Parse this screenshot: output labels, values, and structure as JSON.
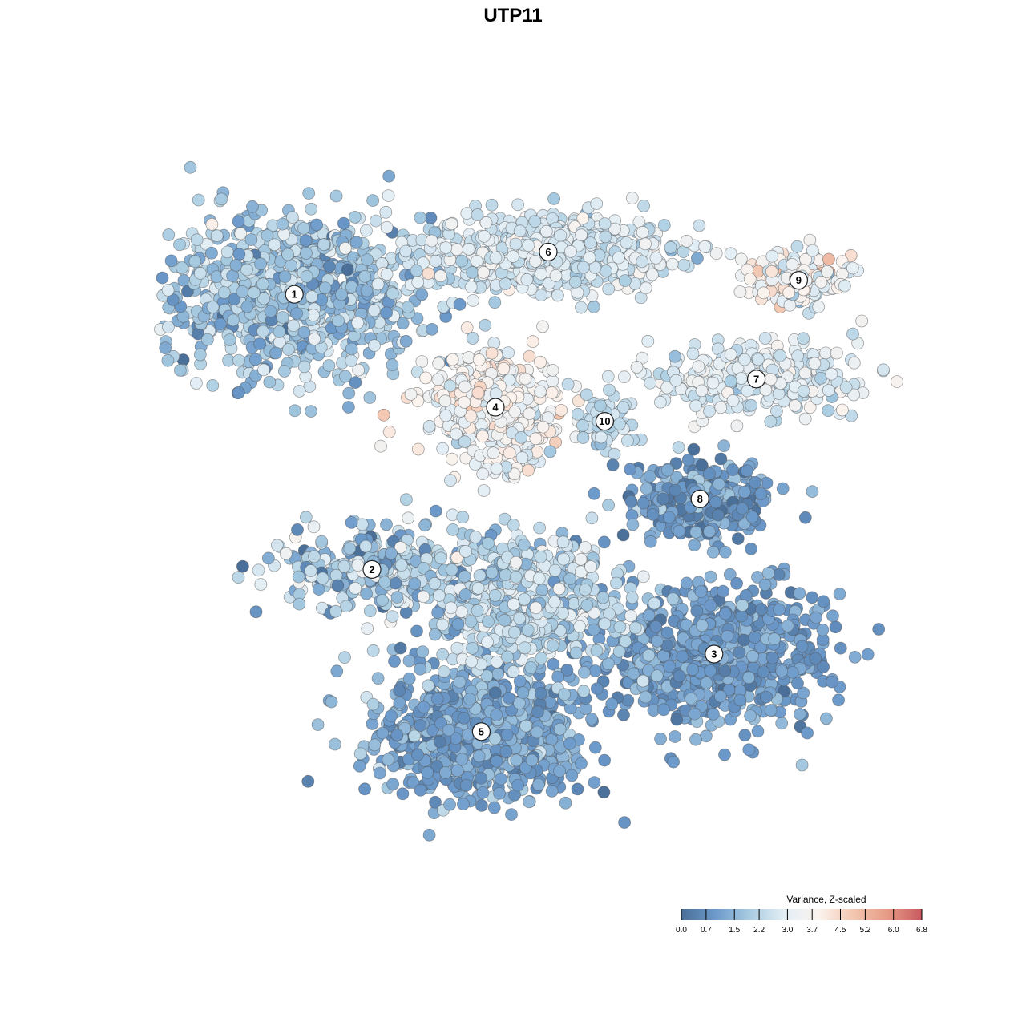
{
  "chart_data": {
    "type": "scatter",
    "title": "UTP11",
    "xlabel": "",
    "ylabel": "",
    "grid": false,
    "legend": {
      "title": "Variance, Z-scaled",
      "placement": "bottom-right",
      "range": [
        0.0,
        6.8
      ],
      "ticks": [
        "0.0",
        "0.7",
        "1.5",
        "2.2",
        "3.0",
        "3.7",
        "4.5",
        "5.2",
        "6.0",
        "6.8"
      ],
      "tick_values": [
        0.0,
        0.7,
        1.5,
        2.2,
        3.0,
        3.7,
        4.5,
        5.2,
        6.0,
        6.8
      ],
      "colormap": [
        "#4a6f98",
        "#6c9acb",
        "#a9cce1",
        "#e3eef5",
        "#fbf3ee",
        "#f3c7b1",
        "#e69b85",
        "#c85a60"
      ]
    },
    "clusters": [
      {
        "label": "1",
        "x": -0.62,
        "y": 0.62,
        "spread": [
          0.26,
          0.16
        ],
        "value": 1.9,
        "sd": 0.6,
        "count": 900
      },
      {
        "label": "6",
        "x": 0.1,
        "y": 0.74,
        "spread": [
          0.24,
          0.07
        ],
        "value": 2.7,
        "sd": 0.45,
        "count": 700
      },
      {
        "label": "9",
        "x": 0.81,
        "y": 0.66,
        "spread": [
          0.1,
          0.05
        ],
        "value": 3.4,
        "sd": 0.8,
        "count": 180
      },
      {
        "label": "7",
        "x": 0.69,
        "y": 0.38,
        "spread": [
          0.2,
          0.06
        ],
        "value": 2.8,
        "sd": 0.45,
        "count": 320
      },
      {
        "label": "4",
        "x": -0.05,
        "y": 0.3,
        "spread": [
          0.12,
          0.1
        ],
        "value": 3.4,
        "sd": 0.55,
        "count": 450
      },
      {
        "label": "10",
        "x": 0.26,
        "y": 0.26,
        "spread": [
          0.05,
          0.05
        ],
        "value": 2.3,
        "sd": 0.3,
        "count": 60
      },
      {
        "label": "8",
        "x": 0.53,
        "y": 0.04,
        "spread": [
          0.13,
          0.08
        ],
        "value": 1.0,
        "sd": 0.5,
        "count": 320
      },
      {
        "label": "2",
        "x": -0.4,
        "y": -0.16,
        "spread": [
          0.18,
          0.08
        ],
        "value": 2.0,
        "sd": 0.8,
        "count": 300
      },
      {
        "label": "3",
        "x": 0.57,
        "y": -0.4,
        "spread": [
          0.22,
          0.13
        ],
        "value": 1.0,
        "sd": 0.4,
        "count": 700
      },
      {
        "label": "5",
        "x": -0.09,
        "y": -0.62,
        "spread": [
          0.2,
          0.12
        ],
        "value": 1.2,
        "sd": 0.45,
        "count": 800
      },
      {
        "label": "",
        "x": 0.04,
        "y": -0.25,
        "spread": [
          0.18,
          0.12
        ],
        "value": 2.3,
        "sd": 0.6,
        "count": 600
      }
    ],
    "points": []
  }
}
